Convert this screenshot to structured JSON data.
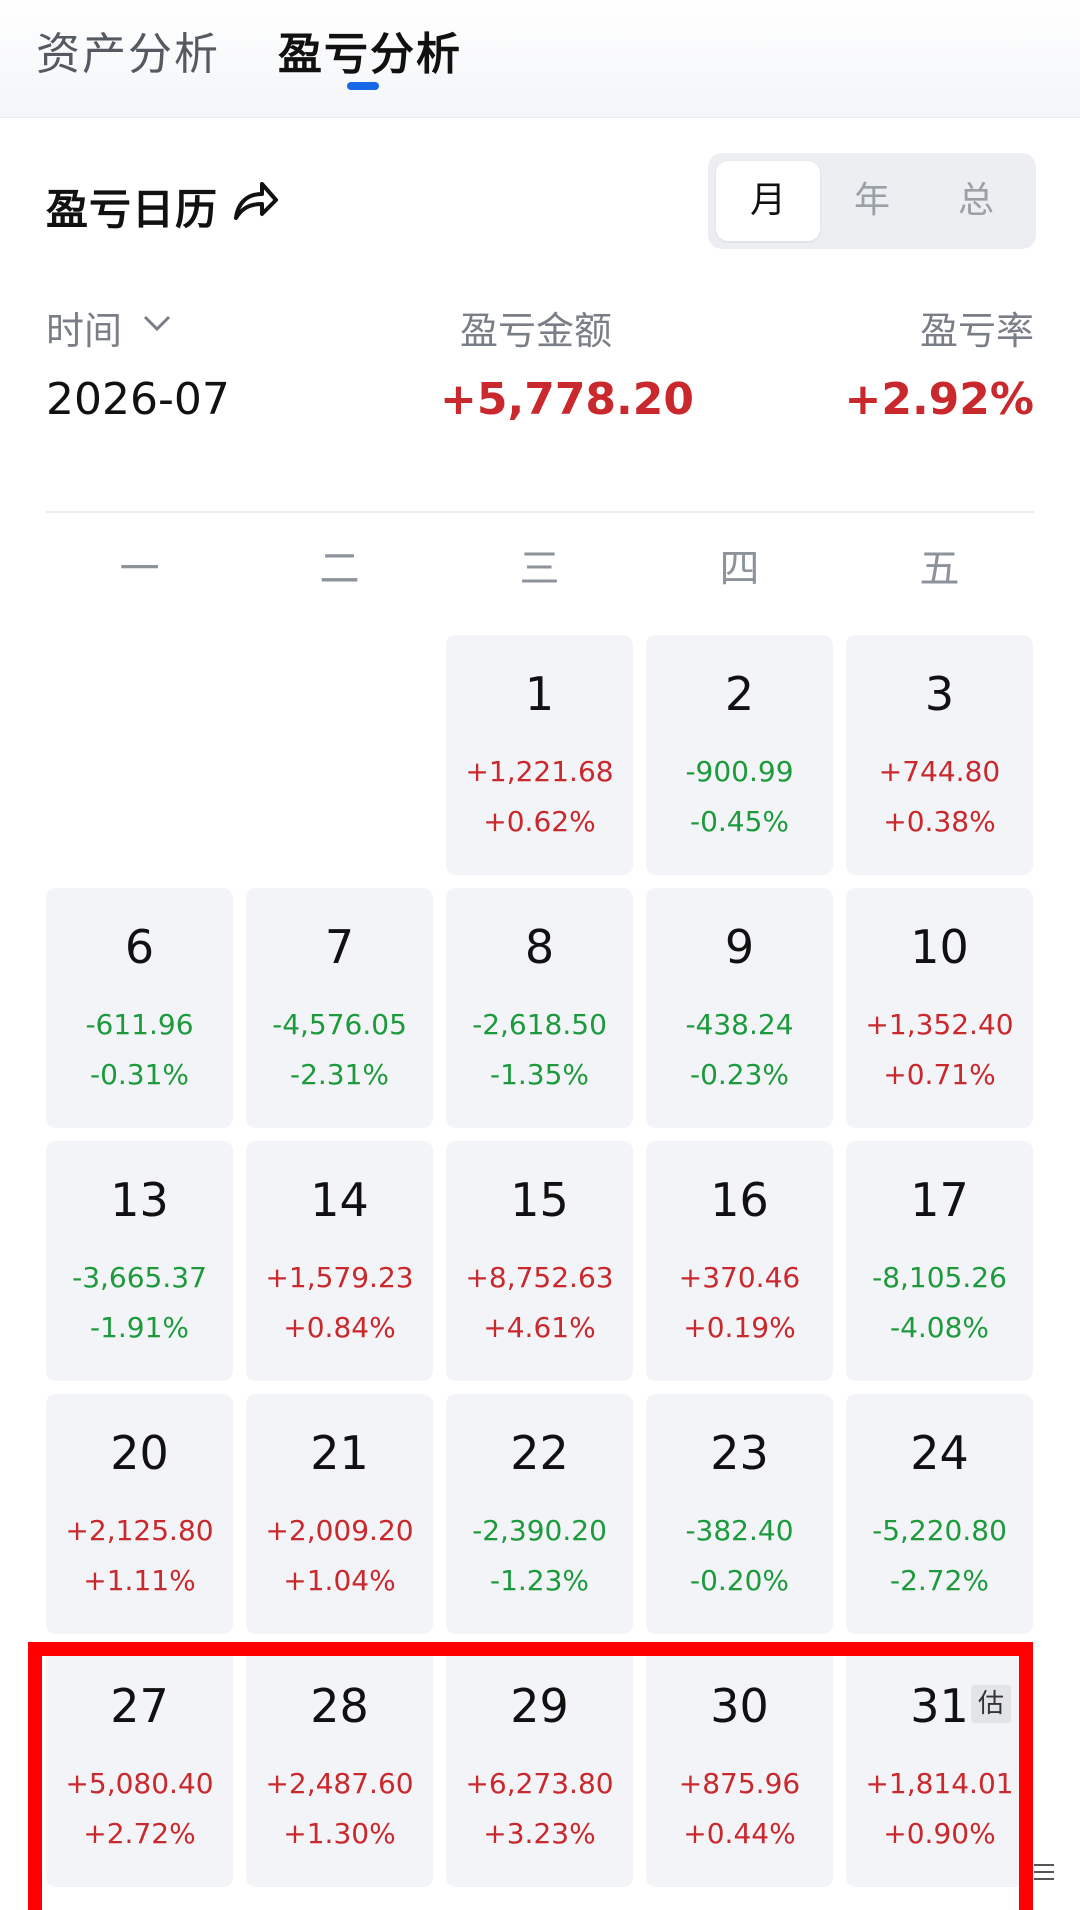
{
  "tabs": [
    {
      "label": "资产分析",
      "active": false
    },
    {
      "label": "盈亏分析",
      "active": true
    }
  ],
  "calendar": {
    "title": "盈亏日历",
    "share_icon": "share-arrow-icon",
    "period_options": [
      {
        "label": "月",
        "active": true
      },
      {
        "label": "年",
        "active": false
      },
      {
        "label": "总",
        "active": false
      }
    ]
  },
  "summary": {
    "time_label": "时间",
    "amount_label": "盈亏金额",
    "rate_label": "盈亏率",
    "month": "2026-07",
    "amount": "+5,778.20",
    "rate": "+2.92%"
  },
  "weekdays": [
    "一",
    "二",
    "三",
    "四",
    "五"
  ],
  "days": [
    {
      "day": "1",
      "amount": "+1,221.68",
      "pct": "+0.62%",
      "positive": true
    },
    {
      "day": "2",
      "amount": "-900.99",
      "pct": "-0.45%",
      "positive": false
    },
    {
      "day": "3",
      "amount": "+744.80",
      "pct": "+0.38%",
      "positive": true
    },
    {
      "day": "6",
      "amount": "-611.96",
      "pct": "-0.31%",
      "positive": false
    },
    {
      "day": "7",
      "amount": "-4,576.05",
      "pct": "-2.31%",
      "positive": false
    },
    {
      "day": "8",
      "amount": "-2,618.50",
      "pct": "-1.35%",
      "positive": false
    },
    {
      "day": "9",
      "amount": "-438.24",
      "pct": "-0.23%",
      "positive": false
    },
    {
      "day": "10",
      "amount": "+1,352.40",
      "pct": "+0.71%",
      "positive": true
    },
    {
      "day": "13",
      "amount": "-3,665.37",
      "pct": "-1.91%",
      "positive": false
    },
    {
      "day": "14",
      "amount": "+1,579.23",
      "pct": "+0.84%",
      "positive": true
    },
    {
      "day": "15",
      "amount": "+8,752.63",
      "pct": "+4.61%",
      "positive": true
    },
    {
      "day": "16",
      "amount": "+370.46",
      "pct": "+0.19%",
      "positive": true
    },
    {
      "day": "17",
      "amount": "-8,105.26",
      "pct": "-4.08%",
      "positive": false
    },
    {
      "day": "20",
      "amount": "+2,125.80",
      "pct": "+1.11%",
      "positive": true
    },
    {
      "day": "21",
      "amount": "+2,009.20",
      "pct": "+1.04%",
      "positive": true
    },
    {
      "day": "22",
      "amount": "-2,390.20",
      "pct": "-1.23%",
      "positive": false
    },
    {
      "day": "23",
      "amount": "-382.40",
      "pct": "-0.20%",
      "positive": false
    },
    {
      "day": "24",
      "amount": "-5,220.80",
      "pct": "-2.72%",
      "positive": false
    },
    {
      "day": "27",
      "amount": "+5,080.40",
      "pct": "+2.72%",
      "positive": true
    },
    {
      "day": "28",
      "amount": "+2,487.60",
      "pct": "+1.30%",
      "positive": true
    },
    {
      "day": "29",
      "amount": "+6,273.80",
      "pct": "+3.23%",
      "positive": true
    },
    {
      "day": "30",
      "amount": "+875.96",
      "pct": "+0.44%",
      "positive": true
    },
    {
      "day": "31",
      "amount": "+1,814.01",
      "pct": "+0.90%",
      "positive": true,
      "badge": "估"
    }
  ],
  "colors": {
    "profit": "#c9282d",
    "loss": "#1c9a3c",
    "accent": "#1768e6",
    "highlight": "#ff0000"
  }
}
